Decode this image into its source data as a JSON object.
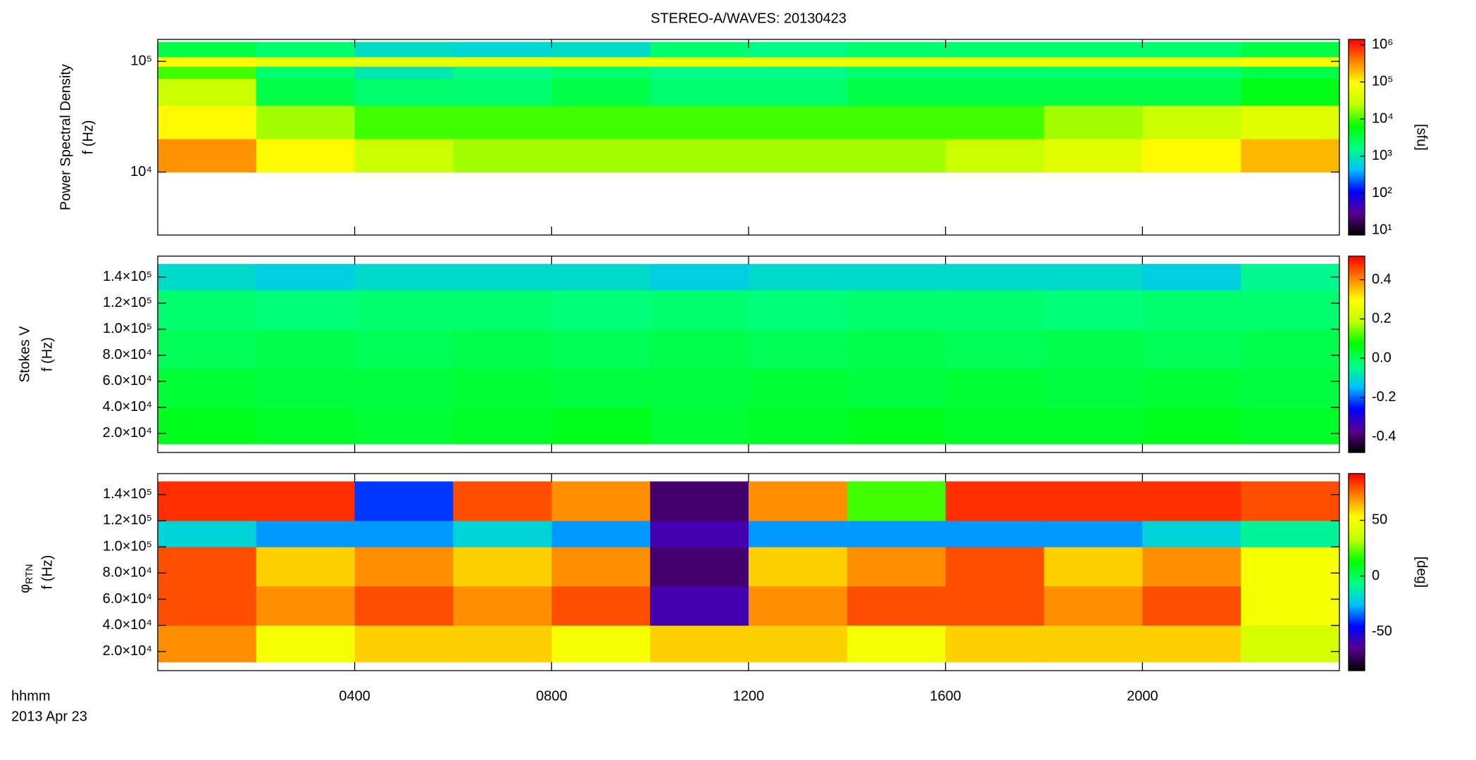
{
  "chart_data": [
    {
      "type": "heatmap",
      "title": "STEREO-A/WAVES: 20130423",
      "ylabel": [
        "Power Spectral Density",
        "f (Hz)"
      ],
      "clabel": "[sfu]",
      "x": [
        0,
        2,
        4,
        6,
        8,
        10,
        12,
        14,
        16,
        18,
        20,
        22,
        24
      ],
      "y": [
        10000,
        20000,
        40000,
        70000,
        90000,
        110000,
        150000
      ],
      "values": [
        [
          300000,
          100000,
          30000,
          20000,
          20000,
          20000,
          20000,
          20000,
          30000,
          50000,
          100000,
          200000
        ],
        [
          100000,
          20000,
          10000,
          10000,
          10000,
          10000,
          10000,
          10000,
          10000,
          20000,
          30000,
          50000
        ],
        [
          30000,
          3000,
          2000,
          2000,
          3000,
          2000,
          2000,
          3000,
          3000,
          3000,
          3000,
          5000
        ],
        [
          10000,
          2000,
          1000,
          1500,
          2000,
          1500,
          1500,
          2000,
          2000,
          2000,
          2000,
          3000
        ],
        [
          100000,
          60000,
          60000,
          60000,
          60000,
          60000,
          60000,
          60000,
          60000,
          60000,
          60000,
          80000
        ],
        [
          3000,
          2000,
          800,
          700,
          800,
          2000,
          1500,
          2000,
          2000,
          2000,
          2000,
          3000
        ]
      ],
      "xlim": [
        0,
        24
      ],
      "ylim": [
        2700,
        158000
      ],
      "ylog": true,
      "yticks": [
        {
          "value": 10000,
          "label": "10⁴"
        },
        {
          "value": 100000,
          "label": "10⁵"
        }
      ],
      "clim": [
        7.5,
        1400000
      ],
      "clog": true,
      "cticks": [
        {
          "value": 10,
          "label": "10¹"
        },
        {
          "value": 100,
          "label": "10²"
        },
        {
          "value": 1000,
          "label": "10³"
        },
        {
          "value": 10000,
          "label": "10⁴"
        },
        {
          "value": 100000,
          "label": "10⁵"
        },
        {
          "value": 1000000,
          "label": "10⁶"
        }
      ],
      "colors": [
        "#000000",
        "#5a0090",
        "#0000ff",
        "#00c0ff",
        "#00ff80",
        "#00ff00",
        "#c0ff00",
        "#ffff00",
        "#ff8000",
        "#ff0000"
      ]
    },
    {
      "type": "heatmap",
      "ylabel": [
        "Stokes V",
        "f (Hz)"
      ],
      "x": [
        0,
        2,
        4,
        6,
        8,
        10,
        12,
        14,
        16,
        18,
        20,
        22,
        24
      ],
      "y": [
        12000,
        40000,
        70000,
        100000,
        130000,
        150000
      ],
      "values": [
        [
          0.05,
          0.04,
          0.03,
          0.04,
          0.05,
          0.03,
          0.04,
          0.05,
          0.04,
          0.04,
          0.05,
          0.04
        ],
        [
          0.03,
          0.02,
          0.02,
          0.03,
          0.02,
          0.02,
          0.03,
          0.02,
          0.03,
          0.02,
          0.03,
          0.02
        ],
        [
          0.0,
          0.01,
          0.0,
          0.01,
          0.0,
          0.01,
          0.0,
          0.01,
          0.0,
          0.01,
          0.0,
          0.01
        ],
        [
          -0.02,
          -0.03,
          -0.02,
          -0.02,
          -0.03,
          -0.02,
          -0.03,
          -0.02,
          -0.02,
          -0.03,
          -0.02,
          -0.02
        ],
        [
          -0.1,
          -0.12,
          -0.1,
          -0.1,
          -0.1,
          -0.12,
          -0.1,
          -0.1,
          -0.1,
          -0.1,
          -0.12,
          -0.05
        ]
      ],
      "xlim": [
        0,
        24
      ],
      "ylim": [
        5400,
        156000
      ],
      "yticks": [
        {
          "value": 20000,
          "label": "2.0×10⁴"
        },
        {
          "value": 40000,
          "label": "4.0×10⁴"
        },
        {
          "value": 60000,
          "label": "6.0×10⁴"
        },
        {
          "value": 80000,
          "label": "8.0×10⁴"
        },
        {
          "value": 100000,
          "label": "1.0×10⁵"
        },
        {
          "value": 120000,
          "label": "1.2×10⁵"
        },
        {
          "value": 140000,
          "label": "1.4×10⁵"
        }
      ],
      "clim": [
        -0.48,
        0.52
      ],
      "cticks": [
        -0.4,
        -0.2,
        {
          "value": 0,
          "label": "0.0"
        },
        0.2,
        0.4
      ],
      "colors": [
        "#000000",
        "#5a0090",
        "#0000ff",
        "#00c0ff",
        "#00ff80",
        "#00ff00",
        "#c0ff00",
        "#ffff00",
        "#ff8000",
        "#ff0000"
      ]
    },
    {
      "type": "heatmap",
      "ylabel": [
        "φ",
        "f (Hz)"
      ],
      "ylabel_sub": "RTN",
      "clabel": "[deg]",
      "xlabel": [
        "hhmm",
        "2013 Apr 23"
      ],
      "x": [
        0,
        2,
        4,
        6,
        8,
        10,
        12,
        14,
        16,
        18,
        20,
        22,
        24
      ],
      "y": [
        12000,
        40000,
        70000,
        100000,
        120000,
        150000
      ],
      "values": [
        [
          70,
          50,
          60,
          60,
          50,
          60,
          60,
          50,
          60,
          60,
          60,
          40
        ],
        [
          80,
          70,
          80,
          70,
          80,
          -60,
          70,
          80,
          80,
          70,
          80,
          50
        ],
        [
          80,
          60,
          70,
          60,
          70,
          -70,
          60,
          70,
          80,
          60,
          70,
          50
        ],
        [
          -20,
          -30,
          -30,
          -20,
          -30,
          -60,
          -30,
          -30,
          -30,
          -30,
          -20,
          -10
        ],
        [
          85,
          85,
          -40,
          80,
          70,
          -70,
          70,
          20,
          85,
          85,
          85,
          80
        ]
      ],
      "xlim": [
        0,
        24
      ],
      "ylim": [
        5400,
        156000
      ],
      "xticks": [
        {
          "value": 4,
          "label": "0400"
        },
        {
          "value": 8,
          "label": "0800"
        },
        {
          "value": 12,
          "label": "1200"
        },
        {
          "value": 16,
          "label": "1600"
        },
        {
          "value": 20,
          "label": "2000"
        }
      ],
      "yticks": [
        {
          "value": 20000,
          "label": "2.0×10⁴"
        },
        {
          "value": 40000,
          "label": "4.0×10⁴"
        },
        {
          "value": 60000,
          "label": "6.0×10⁴"
        },
        {
          "value": 80000,
          "label": "8.0×10⁴"
        },
        {
          "value": 100000,
          "label": "1.0×10⁵"
        },
        {
          "value": 120000,
          "label": "1.2×10⁵"
        },
        {
          "value": 140000,
          "label": "1.4×10⁵"
        }
      ],
      "clim": [
        -85,
        92
      ],
      "cticks": [
        -50,
        0,
        50
      ],
      "colors": [
        "#000000",
        "#5a0090",
        "#0000ff",
        "#00c0ff",
        "#00ff80",
        "#00ff00",
        "#c0ff00",
        "#ffff00",
        "#ff8000",
        "#ff0000"
      ]
    }
  ]
}
